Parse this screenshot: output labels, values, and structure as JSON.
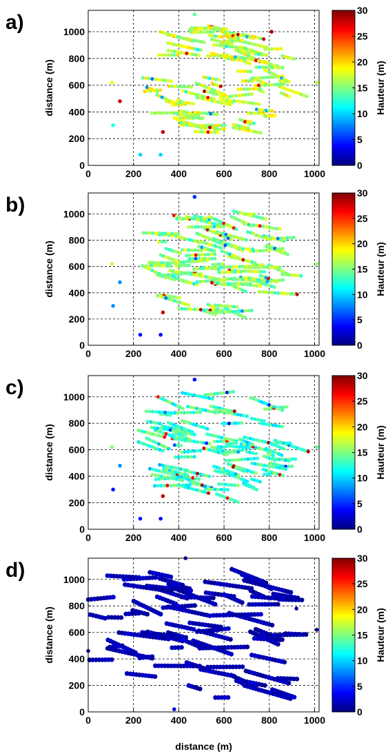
{
  "chart_data": [
    {
      "type": "scatter",
      "panel_label": "a)",
      "xlabel": "",
      "ylabel": "distance (m)",
      "xlim": [
        0,
        1020
      ],
      "ylim": [
        0,
        1160
      ],
      "xticks": [
        0,
        200,
        400,
        600,
        800,
        1000
      ],
      "yticks": [
        0,
        200,
        400,
        600,
        800,
        1000
      ],
      "grid": true,
      "colorbar": {
        "label": "Hauteur (m)",
        "range": [
          0,
          30
        ],
        "ticks": [
          0,
          5,
          10,
          15,
          20,
          25,
          30
        ],
        "colormap": "jet"
      },
      "value_center": 17,
      "value_spread": 3,
      "description_points": [
        {
          "x": 470,
          "y": 1130,
          "value": 14
        },
        {
          "x": 105,
          "y": 620,
          "value": 18
        },
        {
          "x": 140,
          "y": 480,
          "value": 28
        },
        {
          "x": 110,
          "y": 300,
          "value": 12
        },
        {
          "x": 230,
          "y": 80,
          "value": 10
        },
        {
          "x": 320,
          "y": 80,
          "value": 10
        },
        {
          "x": 330,
          "y": 250,
          "value": 28
        },
        {
          "x": 1010,
          "y": 620,
          "value": 17
        },
        {
          "x": 810,
          "y": 1000,
          "value": 29
        }
      ]
    },
    {
      "type": "scatter",
      "panel_label": "b)",
      "xlabel": "",
      "ylabel": "distance (m)",
      "xlim": [
        0,
        1020
      ],
      "ylim": [
        0,
        1160
      ],
      "xticks": [
        0,
        200,
        400,
        600,
        800,
        1000
      ],
      "yticks": [
        0,
        200,
        400,
        600,
        800,
        1000
      ],
      "grid": true,
      "colorbar": {
        "label": "Hauteur (m)",
        "range": [
          0,
          30
        ],
        "ticks": [
          0,
          5,
          10,
          15,
          20,
          25,
          30
        ],
        "colormap": "jet"
      },
      "value_center": 15.5,
      "value_spread": 3,
      "description_points": [
        {
          "x": 470,
          "y": 1130,
          "value": 5
        },
        {
          "x": 105,
          "y": 620,
          "value": 17
        },
        {
          "x": 140,
          "y": 480,
          "value": 8
        },
        {
          "x": 110,
          "y": 300,
          "value": 8
        },
        {
          "x": 230,
          "y": 80,
          "value": 4
        },
        {
          "x": 320,
          "y": 80,
          "value": 4
        },
        {
          "x": 330,
          "y": 250,
          "value": 28
        },
        {
          "x": 1010,
          "y": 620,
          "value": 16
        }
      ]
    },
    {
      "type": "scatter",
      "panel_label": "c)",
      "xlabel": "",
      "ylabel": "distance (m)",
      "xlim": [
        0,
        1020
      ],
      "ylim": [
        0,
        1160
      ],
      "xticks": [
        0,
        200,
        400,
        600,
        800,
        1000
      ],
      "yticks": [
        0,
        200,
        400,
        600,
        800,
        1000
      ],
      "grid": true,
      "colorbar": {
        "label": "Hauteur (m)",
        "range": [
          0,
          30
        ],
        "ticks": [
          0,
          5,
          10,
          15,
          20,
          25,
          30
        ],
        "colormap": "jet"
      },
      "value_center": 13,
      "value_spread": 3,
      "description_points": [
        {
          "x": 470,
          "y": 1130,
          "value": 4
        },
        {
          "x": 105,
          "y": 620,
          "value": 15
        },
        {
          "x": 140,
          "y": 480,
          "value": 8
        },
        {
          "x": 110,
          "y": 300,
          "value": 4
        },
        {
          "x": 230,
          "y": 80,
          "value": 4
        },
        {
          "x": 320,
          "y": 80,
          "value": 4
        },
        {
          "x": 330,
          "y": 250,
          "value": 28
        },
        {
          "x": 1010,
          "y": 620,
          "value": 14
        }
      ]
    },
    {
      "type": "scatter",
      "panel_label": "d)",
      "xlabel": "distance (m)",
      "ylabel": "distance (m)",
      "xlim": [
        0,
        1020
      ],
      "ylim": [
        0,
        1160
      ],
      "xticks": [
        0,
        200,
        400,
        600,
        800,
        1000
      ],
      "yticks": [
        0,
        200,
        400,
        600,
        800,
        1000
      ],
      "grid": true,
      "colorbar": {
        "label": "Hauteur (m)",
        "range": [
          0,
          30
        ],
        "ticks": [
          0,
          5,
          10,
          15,
          20,
          25,
          30
        ],
        "colormap": "jet"
      },
      "value_center": 1.5,
      "value_spread": 1,
      "description_points": [
        {
          "x": 430,
          "y": 1160,
          "value": 1
        },
        {
          "x": 0,
          "y": 460,
          "value": 1
        },
        {
          "x": 1010,
          "y": 620,
          "value": 1
        },
        {
          "x": 380,
          "y": 20,
          "value": 3
        },
        {
          "x": 920,
          "y": 780,
          "value": 1
        }
      ]
    }
  ]
}
